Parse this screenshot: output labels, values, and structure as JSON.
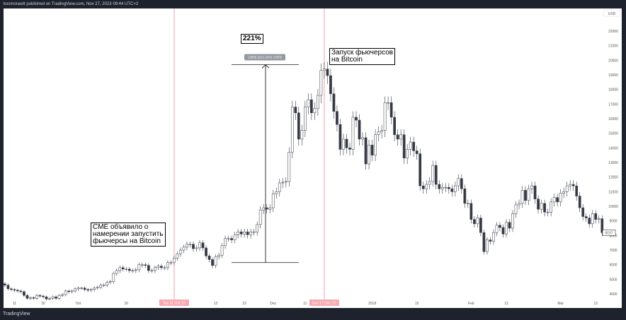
{
  "header": {
    "text": "kosmonavtt published on TradingView.com, Nov 27, 2023 09:44 UTC+2"
  },
  "footer": {
    "logo": "TradingView"
  },
  "annotations": {
    "cme": "CME объявило о\nнамерении запустить\nфьючерсы на Bitcoin",
    "launch": "Запуск фьючерсов\nна Bitcoin",
    "pct": "221%",
    "measure": "13555 (221.19%) 13555"
  },
  "colors": {
    "up": "#ffffff",
    "down": "#363a45",
    "outline": "#363a45",
    "marker": "#f7a8b0",
    "bg": "#1e222d"
  },
  "chart_data": {
    "type": "candlestick",
    "currency": "USD",
    "start_date": "2017-09-08",
    "interval": "1D",
    "closes": [
      4600,
      4350,
      4300,
      4250,
      4200,
      4150,
      3900,
      3700,
      3750,
      3700,
      3900,
      3850,
      3800,
      3650,
      3700,
      3800,
      3700,
      3900,
      3950,
      4200,
      4150,
      4200,
      4350,
      4400,
      4400,
      4300,
      4250,
      4300,
      4400,
      4450,
      4600,
      4600,
      4800,
      4850,
      5400,
      5600,
      5800,
      5700,
      5700,
      5600,
      5600,
      5650,
      6000,
      6000,
      5950,
      5600,
      5600,
      5800,
      5900,
      5800,
      5800,
      6150,
      6150,
      6450,
      6750,
      7000,
      7200,
      7400,
      7400,
      7100,
      7150,
      7500,
      7150,
      6600,
      6350,
      5950,
      6550,
      6650,
      7300,
      7800,
      7800,
      7700,
      8050,
      8250,
      8100,
      8250,
      8050,
      8250,
      8250,
      8750,
      9750,
      9900,
      9800,
      9900,
      10850,
      11000,
      11600,
      11650,
      11700,
      13700,
      16800,
      16400,
      14600,
      15200,
      16800,
      17300,
      16400,
      16700,
      17600,
      19300,
      19400,
      18950,
      17700,
      16500,
      15600,
      13900,
      14600,
      14000,
      13900,
      16100,
      15900,
      14600,
      14700,
      12900,
      14200,
      13500,
      14900,
      15100,
      15200,
      17100,
      17100,
      16100,
      14900,
      14600,
      14900,
      13300,
      13900,
      14400,
      13800,
      13600,
      11400,
      11200,
      11500,
      11700,
      12800,
      11500,
      11200,
      11300,
      11300,
      11200,
      11000,
      11400,
      11900,
      11200,
      10200,
      10200,
      9100,
      8800,
      9200,
      8200,
      6900,
      7700,
      7600,
      8200,
      8700,
      8550,
      8100,
      8900,
      8500,
      9500,
      10100,
      10200,
      11100,
      10400,
      11200,
      11400,
      10500,
      9800,
      10200,
      9600,
      9600,
      10300,
      10600,
      10300,
      10900,
      11000,
      11400,
      11500,
      11400,
      10700,
      9900,
      9300,
      9200,
      8800,
      9500,
      9100,
      9150,
      8197
    ],
    "last_price": "8197",
    "ylim": [
      3500,
      23000
    ],
    "y_ticks": [
      "22000",
      "21000",
      "20000",
      "19000",
      "18000",
      "17000",
      "16000",
      "15000",
      "14000",
      "13000",
      "12000",
      "11000",
      "10000",
      "9000",
      "8000",
      "7000",
      "6000",
      "5000",
      "4000"
    ],
    "x_ticks": [
      "11",
      "20",
      "Oct",
      "16",
      "13",
      "22",
      "Dec",
      "11",
      "2018",
      "15",
      "Feb",
      "12",
      "Mar",
      "12"
    ],
    "markers": [
      "Tue 31 Oct '17",
      "Sun 17 Dec '17"
    ],
    "measure": {
      "from": 6150,
      "to": 19700,
      "label": "13555 (221.19%) 13555"
    }
  }
}
